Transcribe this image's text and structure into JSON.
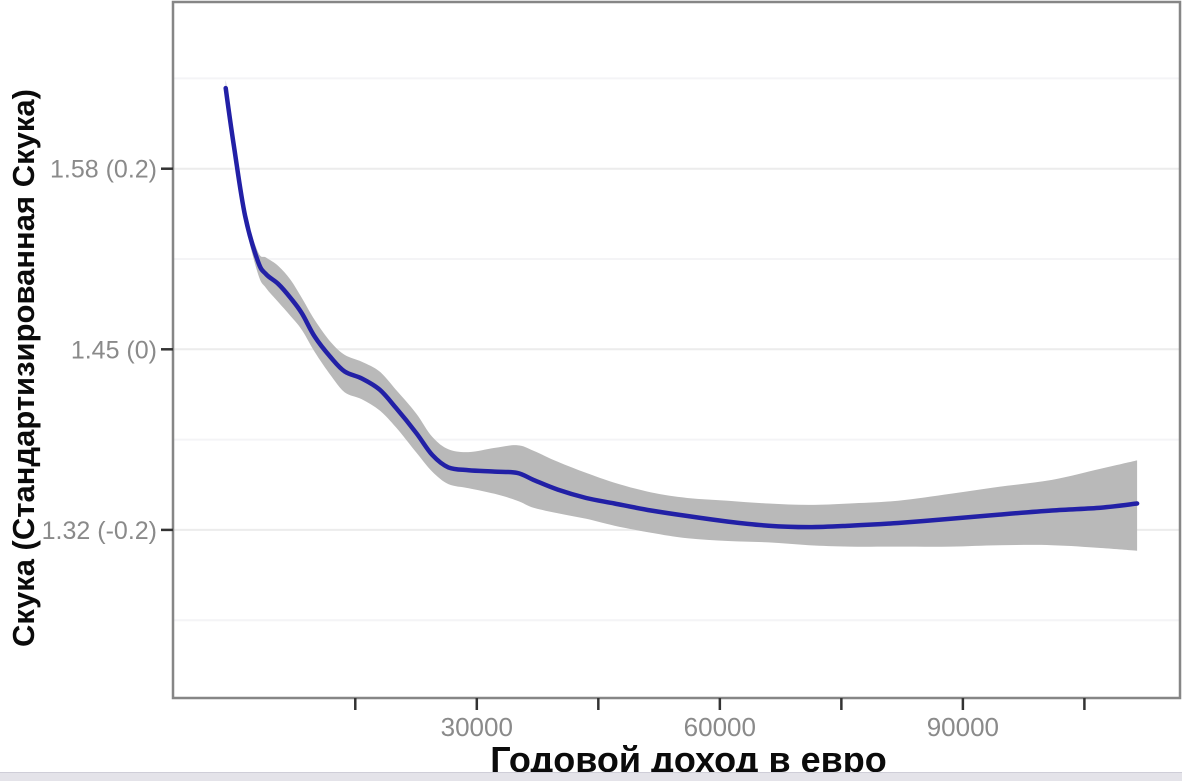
{
  "page": {
    "background": "#ffffff",
    "bottom_bar_color": "#e4e3e9"
  },
  "chart_data": {
    "type": "line",
    "title": "",
    "xlabel": "Годовой доход в евро",
    "ylabel": "Скука (Стандартизированная Скука)",
    "legend": "none",
    "grid": "horizontal-only",
    "xlim": [
      -7500,
      116800
    ],
    "ylim": [
      1.199,
      1.7
    ],
    "x_ticks": [
      {
        "v": 15000,
        "label": ""
      },
      {
        "v": 30000,
        "label": "30000"
      },
      {
        "v": 45000,
        "label": ""
      },
      {
        "v": 60000,
        "label": "60000"
      },
      {
        "v": 75000,
        "label": ""
      },
      {
        "v": 90000,
        "label": "90000"
      },
      {
        "v": 105000,
        "label": ""
      }
    ],
    "y_ticks": [
      {
        "v": 1.58,
        "label": "1.58 (0.2)"
      },
      {
        "v": 1.45,
        "label": "1.45 (0)"
      },
      {
        "v": 1.32,
        "label": "1.32 (-0.2)"
      }
    ],
    "grid_major_y": [
      1.32,
      1.45,
      1.58
    ],
    "grid_minor_y": [
      1.255,
      1.385,
      1.515,
      1.645
    ],
    "x": [
      -1000,
      100,
      1400,
      3000,
      4000,
      5500,
      7000,
      8400,
      10000,
      12000,
      13700,
      15800,
      18000,
      20000,
      22500,
      24500,
      26500,
      29000,
      32200,
      35000,
      37000,
      40000,
      43500,
      47000,
      51500,
      56000,
      61000,
      66000,
      71000,
      76000,
      82000,
      88500,
      94500,
      101000,
      107000,
      111500
    ],
    "series": [
      {
        "name": "smooth-fit",
        "values": [
          1.638,
          1.593,
          1.546,
          1.513,
          1.504,
          1.497,
          1.487,
          1.476,
          1.459,
          1.444,
          1.434,
          1.429,
          1.421,
          1.408,
          1.39,
          1.374,
          1.365,
          1.363,
          1.362,
          1.361,
          1.356,
          1.349,
          1.343,
          1.339,
          1.334,
          1.33,
          1.326,
          1.323,
          1.322,
          1.323,
          1.325,
          1.328,
          1.331,
          1.334,
          1.336,
          1.339
        ]
      }
    ],
    "band": {
      "name": "confidence-band",
      "upper": [
        1.644,
        1.597,
        1.55,
        1.52,
        1.516,
        1.51,
        1.5,
        1.487,
        1.471,
        1.455,
        1.446,
        1.441,
        1.434,
        1.421,
        1.404,
        1.387,
        1.378,
        1.376,
        1.379,
        1.381,
        1.377,
        1.369,
        1.361,
        1.354,
        1.347,
        1.343,
        1.341,
        1.339,
        1.338,
        1.339,
        1.341,
        1.346,
        1.351,
        1.356,
        1.364,
        1.37
      ],
      "lower": [
        1.631,
        1.588,
        1.541,
        1.504,
        1.494,
        1.484,
        1.474,
        1.464,
        1.448,
        1.431,
        1.419,
        1.414,
        1.406,
        1.394,
        1.376,
        1.362,
        1.353,
        1.35,
        1.346,
        1.341,
        1.336,
        1.332,
        1.328,
        1.323,
        1.318,
        1.314,
        1.312,
        1.311,
        1.309,
        1.308,
        1.308,
        1.308,
        1.309,
        1.309,
        1.307,
        1.305
      ]
    },
    "colors": {
      "line": "#2220a6",
      "band": "#b9b9b9",
      "panel_border": "#868686",
      "tick_mark": "#333333",
      "tick_label": "#8a8a8a",
      "grid_major": "#ececec",
      "grid_minor": "#f4f4f6",
      "axis_title": "#0b0b0b"
    }
  }
}
